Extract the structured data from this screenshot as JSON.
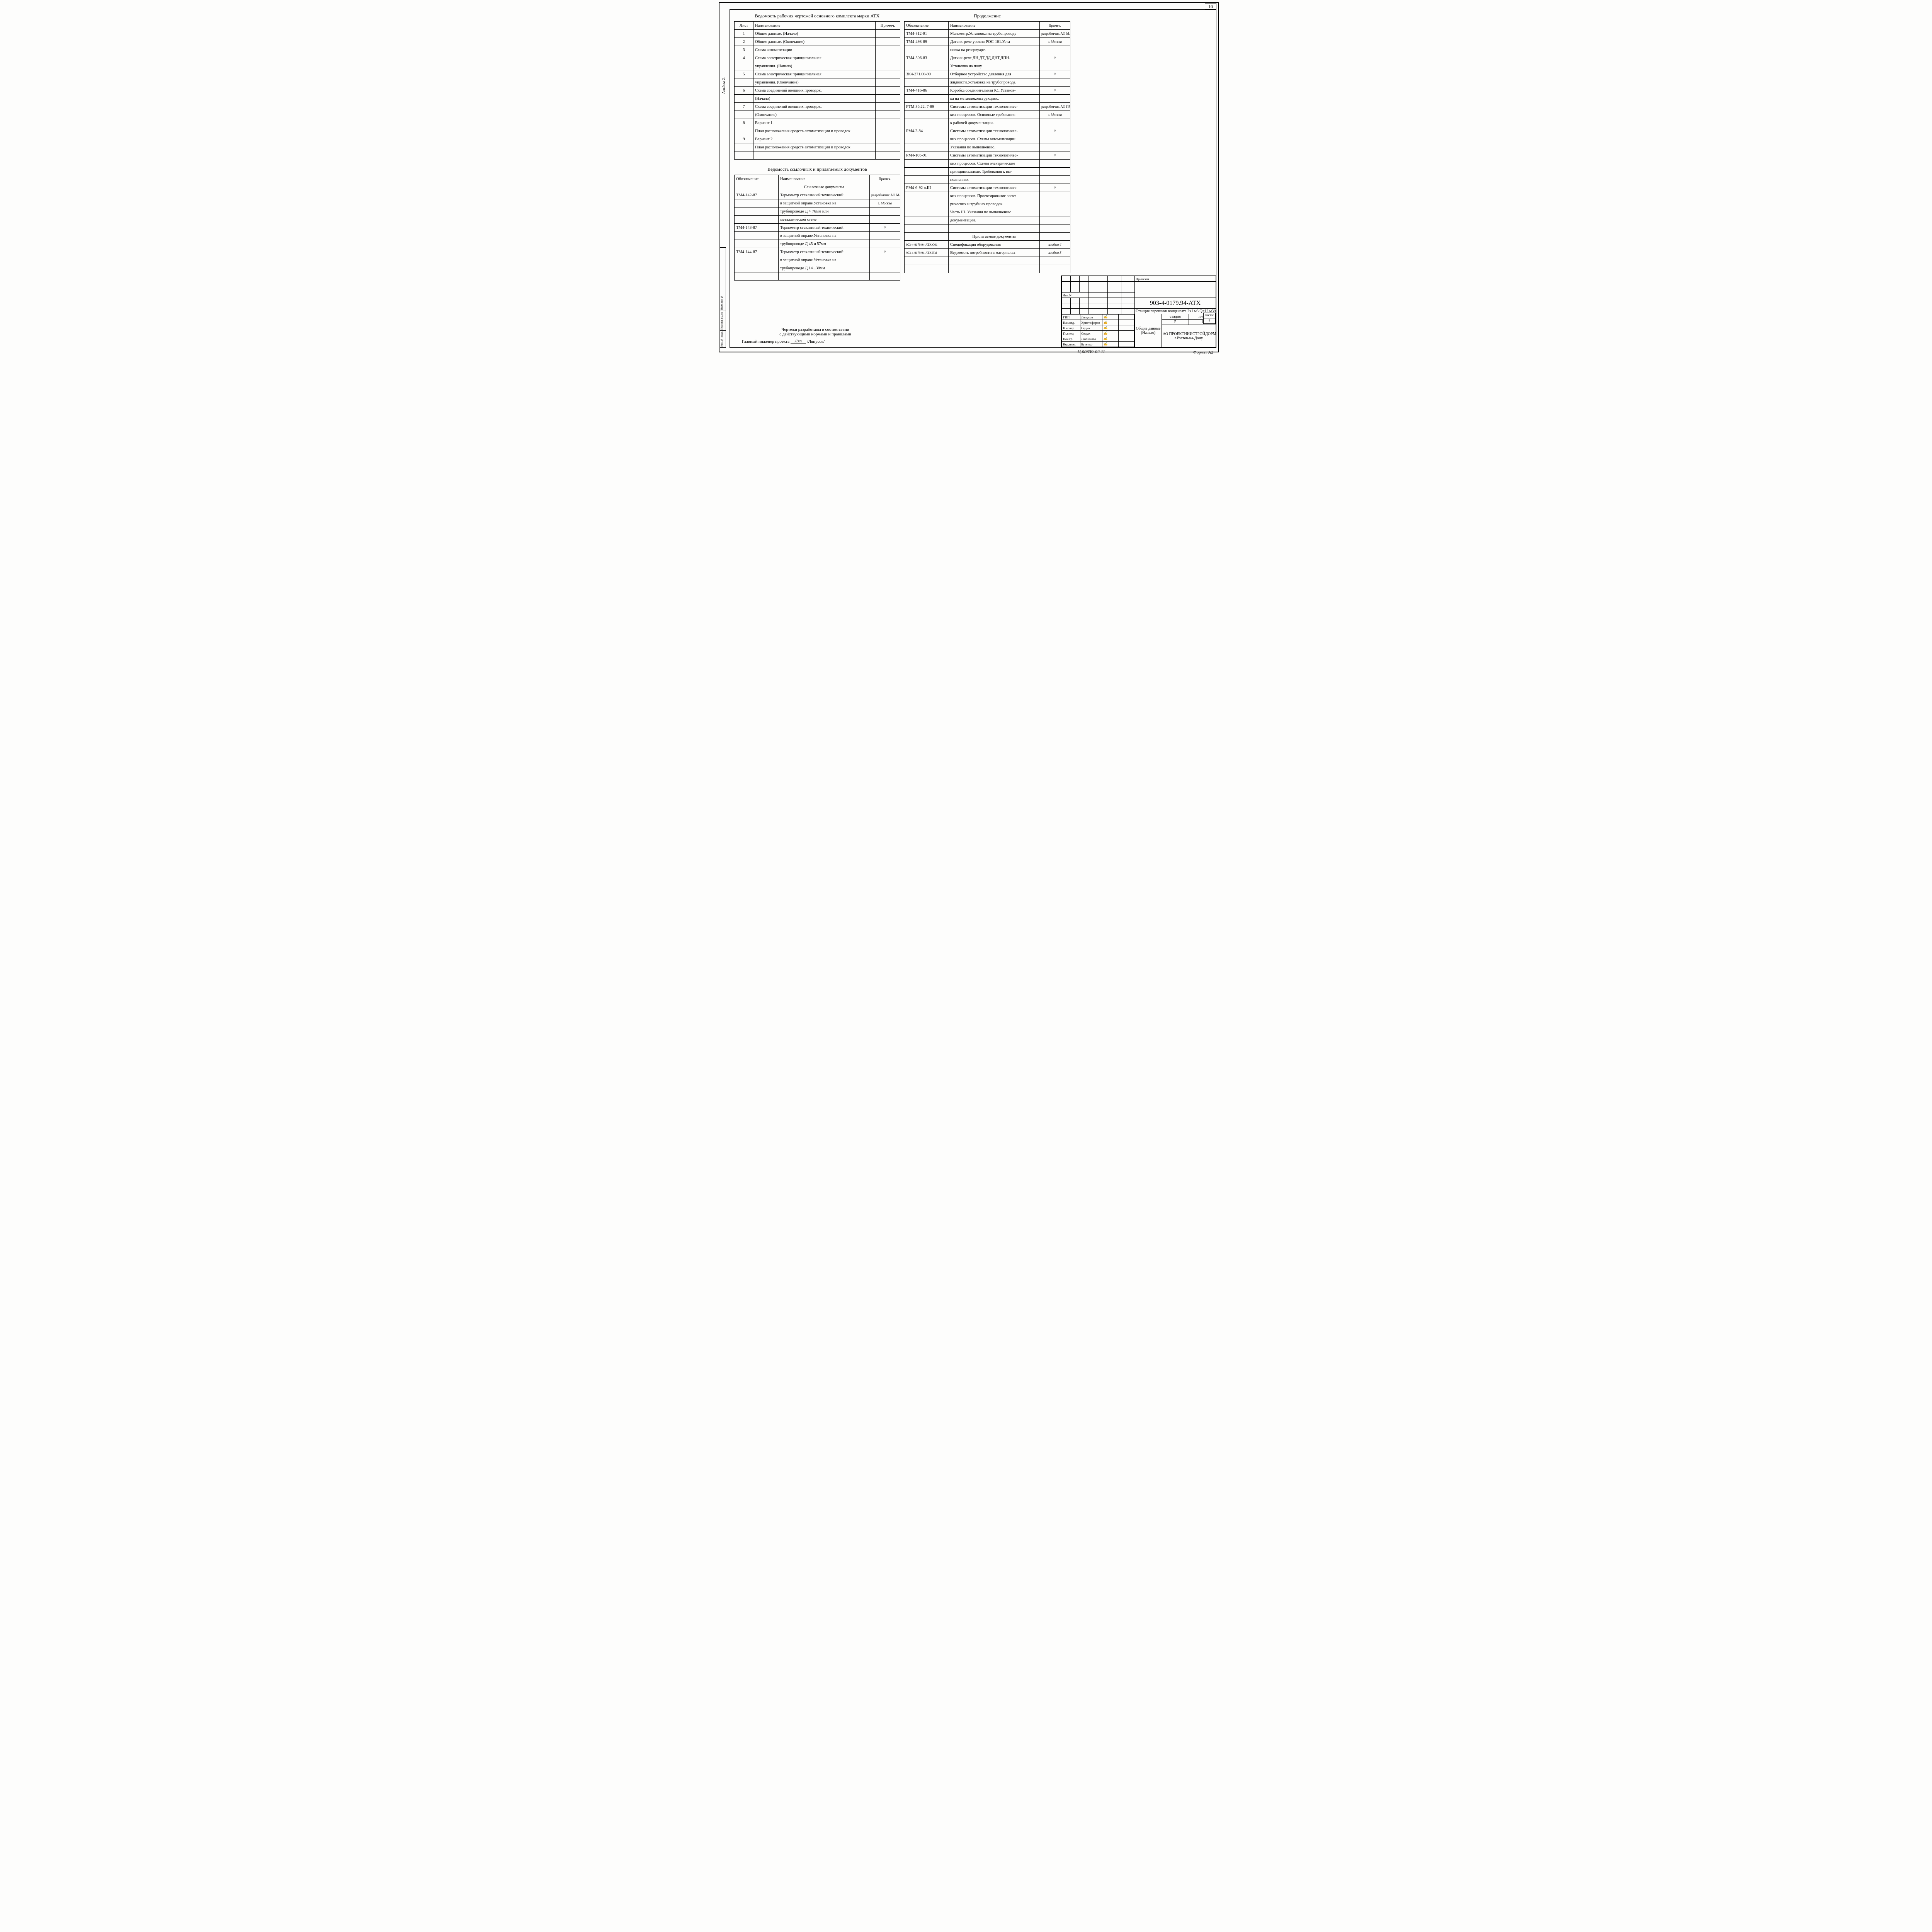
{
  "page_number": "10",
  "side_label": "Альбом 2.",
  "side_stamp": [
    "Инв.№ подл.",
    "Подпись и дата",
    "Взам.инв.№"
  ],
  "table1": {
    "title": "Ведомость рабочих чертежей основного комплекта марки АТХ",
    "headers": [
      "Лист",
      "Наименование",
      "Примеч."
    ],
    "rows": [
      [
        "1",
        "Общие данные. (Начало)",
        ""
      ],
      [
        "2",
        "Общие данные. (Окончание)",
        ""
      ],
      [
        "3",
        "Схема автоматизации",
        ""
      ],
      [
        "4",
        "Схема электрическая принципиальная",
        ""
      ],
      [
        "",
        "управления. (Начало)",
        ""
      ],
      [
        "5",
        "Схема электрическая принципиальная",
        ""
      ],
      [
        "",
        "управления. (Окончание)",
        ""
      ],
      [
        "6",
        "Схема соединений внешних проводок.",
        ""
      ],
      [
        "",
        "(Начало)",
        ""
      ],
      [
        "7",
        "Схема соединений внешних проводок.",
        ""
      ],
      [
        "",
        "(Окончание)",
        ""
      ],
      [
        "8",
        "Вариант 1.",
        ""
      ],
      [
        "",
        "План расположения средств автоматизации и проводок",
        ""
      ],
      [
        "9",
        "Вариант 2",
        ""
      ],
      [
        "",
        "План расположения средств автоматизации и проводок",
        ""
      ],
      [
        "",
        "",
        ""
      ]
    ]
  },
  "table2": {
    "title": "Ведомость ссылочных и прилагаемых документов",
    "headers": [
      "Обозначение",
      "Наименование",
      "Примеч."
    ],
    "subheader": "Ссылочные документы",
    "rows": [
      [
        "ТМ4-142-87",
        "Термометр стеклянный технический",
        "разработчик АО МА"
      ],
      [
        "",
        "в защитной оправе.Установка на",
        "г. Москва"
      ],
      [
        "",
        "трубопроводе Д > 76мм или",
        ""
      ],
      [
        "",
        "металлической стене",
        ""
      ],
      [
        "ТМ4-143-87",
        "Термометр стеклянный технический",
        "//"
      ],
      [
        "",
        "в защитной оправе.Установка на",
        ""
      ],
      [
        "",
        "трубопроводе Д 45 и 57мм",
        ""
      ],
      [
        "ТМ4-144-87",
        "Термометр стеклянный технический",
        "//"
      ],
      [
        "",
        "в защитной оправе.Установка на",
        ""
      ],
      [
        "",
        "трубопроводе Д 14...38мм",
        ""
      ],
      [
        "",
        "",
        ""
      ]
    ]
  },
  "table3": {
    "title": "Продолжение",
    "headers": [
      "Обозначение",
      "Наименование",
      "Примеч."
    ],
    "rows": [
      [
        "ТМ4-512-91",
        "Манометр.Установка на трубопроводе",
        "разработчик АО МА"
      ],
      [
        "ТМ4-498-89",
        "Датчик-реле уровня РОС-101.Уста-",
        "г. Москва"
      ],
      [
        "",
        "новка на резервуаре.",
        ""
      ],
      [
        "ТМ4-306-83",
        "Датчик-реле ДН,ДТ,ДД,ДНТ,ДПН.",
        "//"
      ],
      [
        "",
        "Установка на полу",
        ""
      ],
      [
        "ЗК4-271.00-90",
        "Отборное устройство давления для",
        "//"
      ],
      [
        "",
        "жидкости.Установка на трубопроводе.",
        ""
      ],
      [
        "ТМ4-416-86",
        "Коробка соединительная КС.Установ-",
        "//"
      ],
      [
        "",
        "ка на металлоконструкциях.",
        ""
      ],
      [
        "РТМ 36.22. 7-89",
        "Системы автоматизации технологичес-",
        "разработчик АО ПМА"
      ],
      [
        "",
        "ких процессов. Основные требования",
        "г. Москва"
      ],
      [
        "",
        "к рабочей документации.",
        ""
      ],
      [
        "РМ4-2-84",
        "Системы автоматизации технологичес-",
        "//"
      ],
      [
        "",
        "ких процессов. Схемы автоматизации.",
        ""
      ],
      [
        "",
        "Указания по выполнению.",
        ""
      ],
      [
        "РМ4-106-91",
        "Системы автоматизации технологичес-",
        "//"
      ],
      [
        "",
        "ких процессов. Схемы электрические",
        ""
      ],
      [
        "",
        "принципиальные. Требования к вы-",
        ""
      ],
      [
        "",
        "полнению.",
        ""
      ],
      [
        "РМ4-6-92 ч.III",
        "Системы автоматизации технологичес-",
        "//"
      ],
      [
        "",
        "ких процессов. Проектирование элект-",
        ""
      ],
      [
        "",
        "рических и трубных проводок.",
        ""
      ],
      [
        "",
        "Часть III. Указания по выполнению",
        ""
      ],
      [
        "",
        "документации.",
        ""
      ],
      [
        "",
        "",
        ""
      ]
    ],
    "sub2": "Прилагаемые документы",
    "rows2": [
      [
        "903-4-0179.94-АТХ.С01",
        "Спецификация оборудования",
        "альбом 4"
      ],
      [
        "903-4-0179.94-АТХ.ВМ",
        "Ведомость потребности в материалах",
        "альбом 5"
      ],
      [
        "",
        "",
        ""
      ],
      [
        "",
        "",
        ""
      ]
    ]
  },
  "footnote": {
    "line1": "Чертежи разработаны в соответствии",
    "line2": "с действующими нормами и правилами",
    "line3a": "Главный инженер проекта",
    "line3b": "/Ляпусов/"
  },
  "stamp": {
    "bound": "Привязан",
    "inv": "Инв.N",
    "roles": [
      [
        "ГИП",
        "Ляпусов"
      ],
      [
        "Нач.отд.",
        "Христофоров"
      ],
      [
        "Н.контр.",
        "Седых"
      ],
      [
        "Гл.спец.",
        "Седых"
      ],
      [
        "Нач.гр.",
        "Любимова"
      ],
      [
        "Вед.инж.",
        "Бутенко"
      ]
    ],
    "code": "903-4-0179.94-АТХ",
    "project": "Станция перекачки конденсата 2х1 м3   Q=12 м3/ч",
    "cols": [
      "стадия",
      "лист",
      "листов"
    ],
    "vals": [
      "Р",
      "1",
      "9"
    ],
    "title": "Общие данные",
    "title2": "(Начало)",
    "org1": "АО ПРОЕКТНИИСТРОЙДОРМАШ",
    "org2": "г.Ростов-на-Дону"
  },
  "archive_no": "Ц.00339-02   11",
  "format": "Формат А2"
}
